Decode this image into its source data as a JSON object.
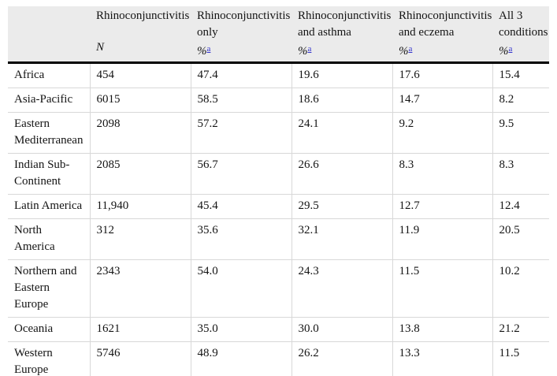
{
  "colors": {
    "header_bg": "#ebebeb",
    "row_border": "#d8d8d8",
    "header_rule": "#000000",
    "footnote_link_blue": "#3333cc",
    "text": "#141414",
    "page_bg": "#ffffff"
  },
  "table": {
    "description": "Rhinoconjunctivitis prevalence and comorbidity by world region",
    "footnote_marker": "a",
    "header": {
      "columns": [
        {
          "key": "region",
          "title_lines": [],
          "sub": "",
          "footnote": ""
        },
        {
          "key": "n",
          "title_lines": [
            "Rhinoconjunctivitis"
          ],
          "sub": "N",
          "footnote": ""
        },
        {
          "key": "only",
          "title_lines": [
            "Rhinoconjunctivitis",
            "only"
          ],
          "sub": "%",
          "footnote": "a"
        },
        {
          "key": "asthma",
          "title_lines": [
            "Rhinoconjunctivitis",
            "and asthma"
          ],
          "sub": "%",
          "footnote": "a"
        },
        {
          "key": "eczema",
          "title_lines": [
            "Rhinoconjunctivitis",
            "and eczema"
          ],
          "sub": "%",
          "footnote": "a"
        },
        {
          "key": "all3",
          "title_lines": [
            "All 3",
            "conditions"
          ],
          "sub": "%",
          "footnote": "a"
        }
      ]
    },
    "rows": [
      {
        "region": "Africa",
        "n": "454",
        "only": "47.4",
        "asthma": "19.6",
        "eczema": "17.6",
        "all3": "15.4"
      },
      {
        "region": "Asia-Pacific",
        "n": "6015",
        "only": "58.5",
        "asthma": "18.6",
        "eczema": "14.7",
        "all3": "8.2"
      },
      {
        "region": "Eastern Mediterranean",
        "n": "2098",
        "only": "57.2",
        "asthma": "24.1",
        "eczema": "9.2",
        "all3": "9.5"
      },
      {
        "region": "Indian Sub-Continent",
        "n": "2085",
        "only": "56.7",
        "asthma": "26.6",
        "eczema": "8.3",
        "all3": "8.3"
      },
      {
        "region": "Latin America",
        "n": "11,940",
        "only": "45.4",
        "asthma": "29.5",
        "eczema": "12.7",
        "all3": "12.4"
      },
      {
        "region": "North America",
        "n": "312",
        "only": "35.6",
        "asthma": "32.1",
        "eczema": "11.9",
        "all3": "20.5"
      },
      {
        "region": "Northern and Eastern Europe",
        "n": "2343",
        "only": "54.0",
        "asthma": "24.3",
        "eczema": "11.5",
        "all3": "10.2"
      },
      {
        "region": "Oceania",
        "n": "1621",
        "only": "35.0",
        "asthma": "30.0",
        "eczema": "13.8",
        "all3": "21.2"
      },
      {
        "region": "Western Europe",
        "n": "5746",
        "only": "48.9",
        "asthma": "26.2",
        "eczema": "13.3",
        "all3": "11.5"
      }
    ]
  }
}
